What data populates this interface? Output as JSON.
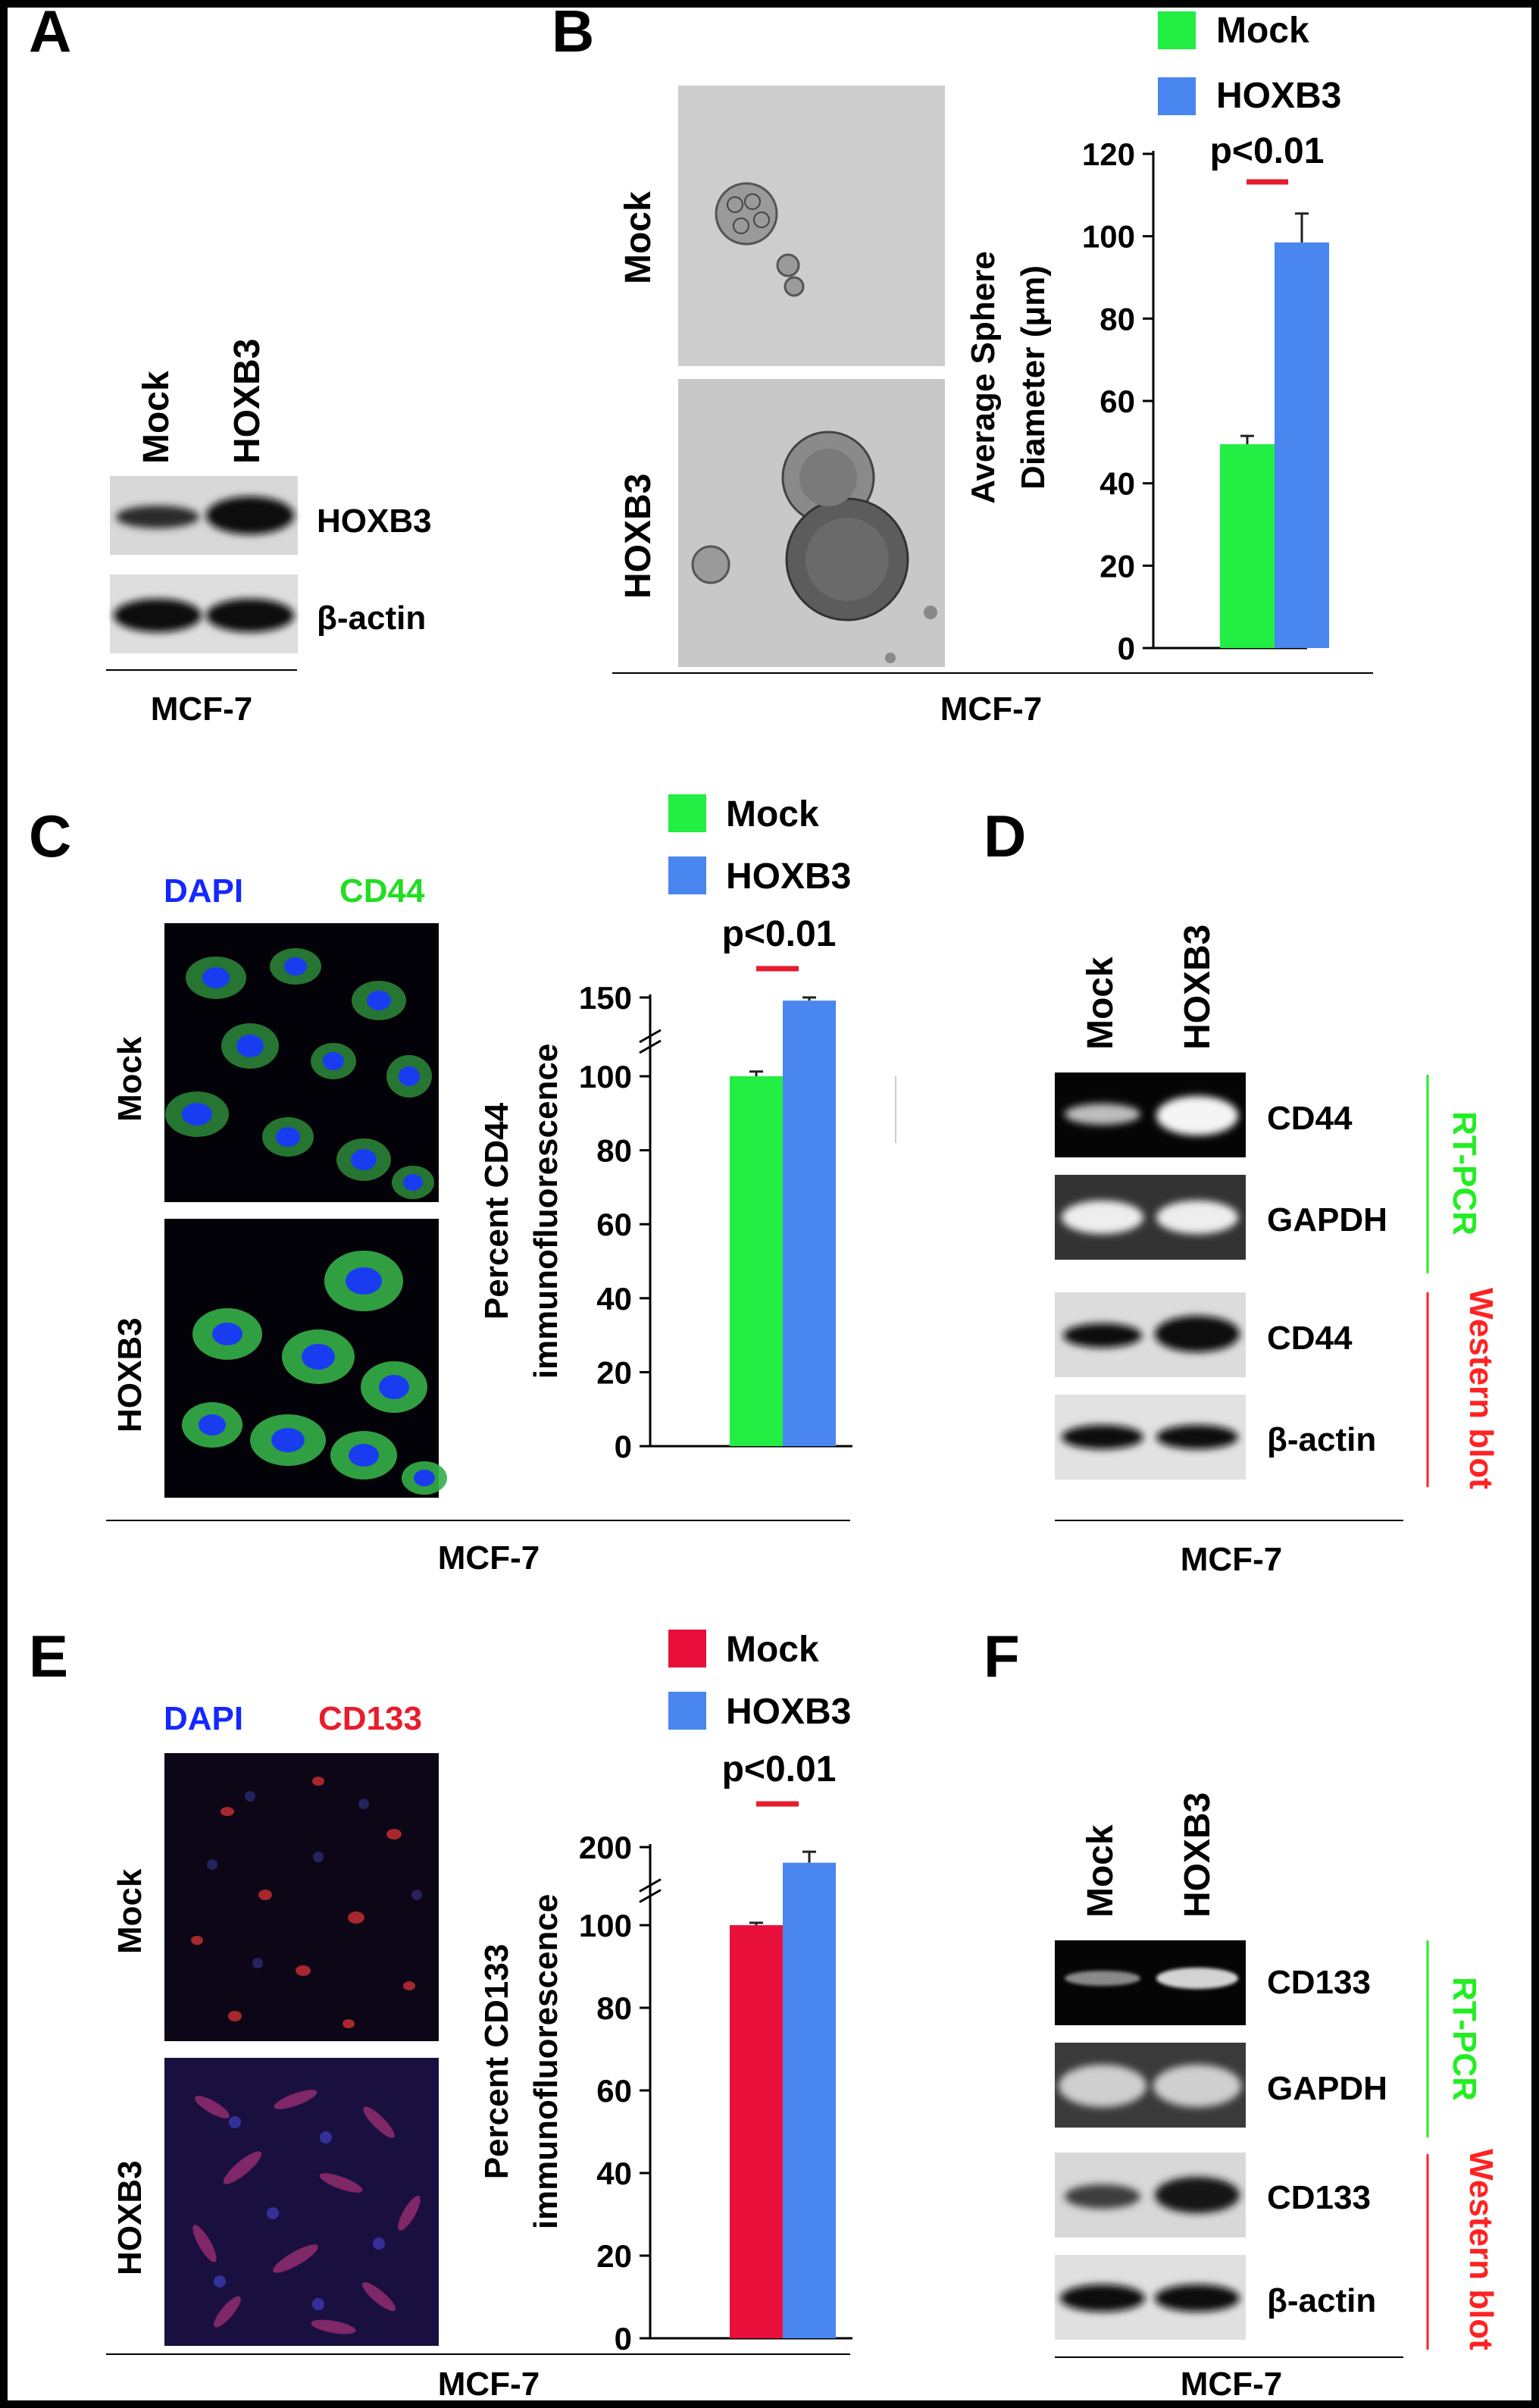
{
  "panels": {
    "A": {
      "letter": "A",
      "lanes": [
        "Mock",
        "HOXB3"
      ],
      "bands": [
        "HOXB3",
        "β-actin"
      ],
      "cell_line": "MCF-7"
    },
    "B": {
      "letter": "B",
      "image_rows": [
        "Mock",
        "HOXB3"
      ],
      "cell_line": "MCF-7"
    },
    "C": {
      "letter": "C",
      "stains": [
        "DAPI",
        "CD44"
      ],
      "image_rows": [
        "Mock",
        "HOXB3"
      ],
      "cell_line": "MCF-7"
    },
    "D": {
      "letter": "D",
      "lanes": [
        "Mock",
        "HOXB3"
      ],
      "bands": [
        "CD44",
        "GAPDH",
        "CD44",
        "β-actin"
      ],
      "methods": [
        "RT-PCR",
        "Western blot"
      ],
      "cell_line": "MCF-7"
    },
    "E": {
      "letter": "E",
      "stains": [
        "DAPI",
        "CD133"
      ],
      "image_rows": [
        "Mock",
        "HOXB3"
      ],
      "cell_line": "MCF-7"
    },
    "F": {
      "letter": "F",
      "lanes": [
        "Mock",
        "HOXB3"
      ],
      "bands": [
        "CD133",
        "GAPDH",
        "CD133",
        "β-actin"
      ],
      "methods": [
        "RT-PCR",
        "Western blot"
      ],
      "cell_line": "MCF-7"
    }
  },
  "colors": {
    "mock_green": "#22ee44",
    "mock_red": "#e8103a",
    "hoxb3_blue": "#4a86f0",
    "significance": "#e81c2c",
    "rtpcr_label": "#22ee22",
    "western_label": "#ff2222",
    "dapi_label": "#1428ff",
    "cd44_label": "#22dd22",
    "cd133_label": "#e81c2c"
  },
  "chart_data": [
    {
      "id": "B",
      "type": "bar",
      "categories": [
        "Mock",
        "HOXB3"
      ],
      "values": [
        49.5,
        98.5
      ],
      "errors": [
        2,
        7
      ],
      "legend": [
        "Mock",
        "HOXB3"
      ],
      "ylabel_lines": [
        "Average Sphere",
        "Diameter (μm)"
      ],
      "yticks": [
        0,
        20,
        40,
        60,
        80,
        100,
        120
      ],
      "ylim": [
        0,
        120
      ],
      "significance": "p<0.01",
      "legend_position": "top"
    },
    {
      "id": "C",
      "type": "bar",
      "categories": [
        "Mock",
        "HOXB3"
      ],
      "values": [
        100,
        148
      ],
      "errors": [
        3,
        2
      ],
      "legend": [
        "Mock",
        "HOXB3"
      ],
      "ylabel_lines": [
        "Percent CD44",
        "immunofluorescence"
      ],
      "yticks": [
        0,
        20,
        40,
        60,
        80,
        100,
        150
      ],
      "axis_break": true,
      "significance": "p<0.01",
      "legend_position": "top"
    },
    {
      "id": "E",
      "type": "bar",
      "categories": [
        "Mock",
        "HOXB3"
      ],
      "values": [
        100,
        180
      ],
      "errors": [
        3,
        14
      ],
      "legend": [
        "Mock",
        "HOXB3"
      ],
      "ylabel_lines": [
        "Percent CD133",
        "immunofluorescence"
      ],
      "yticks": [
        0,
        20,
        40,
        60,
        80,
        100,
        200
      ],
      "axis_break": true,
      "significance": "p<0.01",
      "legend_position": "top"
    }
  ]
}
